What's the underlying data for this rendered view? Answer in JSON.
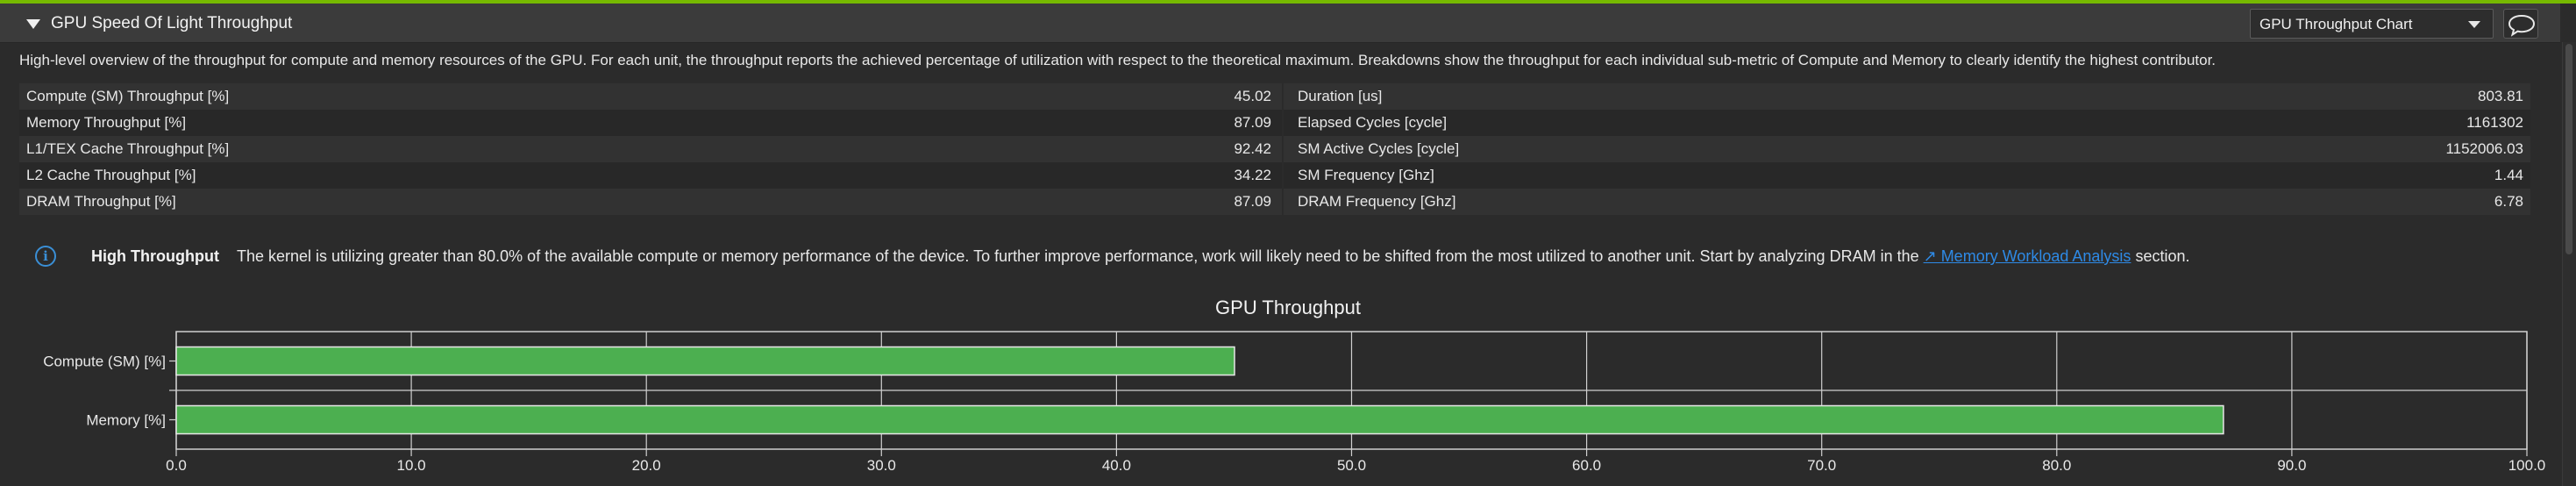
{
  "section": {
    "title": "GPU Speed Of Light Throughput",
    "chart_selector": "GPU Throughput Chart",
    "description": "High-level overview of the throughput for compute and memory resources of the GPU. For each unit, the throughput reports the achieved percentage of utilization with respect to the theoretical maximum. Breakdowns show the throughput for each individual sub-metric of Compute and Memory to clearly identify the highest contributor."
  },
  "metrics": [
    {
      "lname": "Compute (SM) Throughput [%]",
      "lval": "45.02",
      "rname": "Duration [us]",
      "rval": "803.81"
    },
    {
      "lname": "Memory Throughput [%]",
      "lval": "87.09",
      "rname": "Elapsed Cycles [cycle]",
      "rval": "1161302"
    },
    {
      "lname": "L1/TEX Cache Throughput [%]",
      "lval": "92.42",
      "rname": "SM Active Cycles [cycle]",
      "rval": "1152006.03"
    },
    {
      "lname": "L2 Cache Throughput [%]",
      "lval": "34.22",
      "rname": "SM Frequency [Ghz]",
      "rval": "1.44"
    },
    {
      "lname": "DRAM Throughput [%]",
      "lval": "87.09",
      "rname": "DRAM Frequency [Ghz]",
      "rval": "6.78"
    }
  ],
  "info": {
    "icon": "info-icon",
    "title": "High Throughput",
    "text_before": "The kernel is utilizing greater than 80.0% of the available compute or memory performance of the device. To further improve performance, work will likely need to be shifted from the most utilized to another unit. Start by analyzing DRAM in the ",
    "link": "↗ Memory Workload Analysis",
    "text_after": " section."
  },
  "colors": {
    "accent": "#76b900",
    "bar_fill": "#4caf50",
    "link": "#2e8ae6"
  },
  "chart_data": {
    "type": "bar",
    "orientation": "horizontal",
    "title": "GPU Throughput",
    "categories": [
      "Compute (SM) [%]",
      "Memory [%]"
    ],
    "values": [
      45.02,
      87.09
    ],
    "xlim": [
      0,
      100
    ],
    "xticks": [
      "0.0",
      "10.0",
      "20.0",
      "30.0",
      "40.0",
      "50.0",
      "60.0",
      "70.0",
      "80.0",
      "90.0",
      "100.0"
    ],
    "grid": true
  }
}
